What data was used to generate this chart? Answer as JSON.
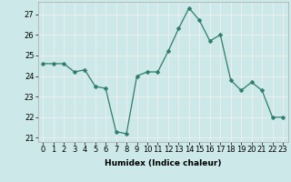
{
  "x": [
    0,
    1,
    2,
    3,
    4,
    5,
    6,
    7,
    8,
    9,
    10,
    11,
    12,
    13,
    14,
    15,
    16,
    17,
    18,
    19,
    20,
    21,
    22,
    23
  ],
  "y": [
    24.6,
    24.6,
    24.6,
    24.2,
    24.3,
    23.5,
    23.4,
    21.3,
    21.2,
    24.0,
    24.2,
    24.2,
    25.2,
    26.3,
    27.3,
    26.7,
    25.7,
    26.0,
    23.8,
    23.3,
    23.7,
    23.3,
    22.0,
    22.0
  ],
  "line_color": "#2e7d6e",
  "marker": "D",
  "marker_size": 2.5,
  "bg_color": "#cce8e8",
  "grid_color": "#f0f0f0",
  "xlabel": "Humidex (Indice chaleur)",
  "ylim": [
    20.8,
    27.6
  ],
  "xlim": [
    -0.5,
    23.5
  ],
  "yticks": [
    21,
    22,
    23,
    24,
    25,
    26,
    27
  ],
  "xticks": [
    0,
    1,
    2,
    3,
    4,
    5,
    6,
    7,
    8,
    9,
    10,
    11,
    12,
    13,
    14,
    15,
    16,
    17,
    18,
    19,
    20,
    21,
    22,
    23
  ],
  "label_fontsize": 6.5,
  "tick_fontsize": 6
}
